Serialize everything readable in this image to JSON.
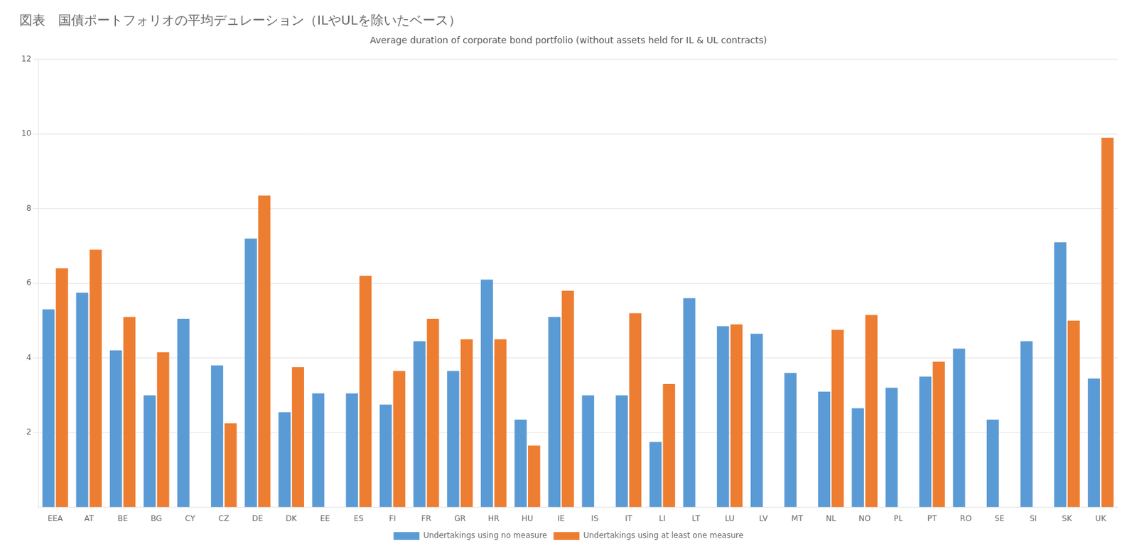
{
  "chart_data": {
    "type": "bar",
    "title": "図表　国債ポートフォリオの平均デュレーション（ILやULを除いたベース）",
    "subtitle": "Average duration of corporate bond portfolio (without assets held for IL & UL contracts)",
    "categories": [
      "EEA",
      "AT",
      "BE",
      "BG",
      "CY",
      "CZ",
      "DE",
      "DK",
      "EE",
      "ES",
      "FI",
      "FR",
      "GR",
      "HR",
      "HU",
      "IE",
      "IS",
      "IT",
      "LI",
      "LT",
      "LU",
      "LV",
      "MT",
      "NL",
      "NO",
      "PL",
      "PT",
      "RO",
      "SE",
      "SI",
      "SK",
      "UK"
    ],
    "series": [
      {
        "name": "Undertakings using no measure",
        "color": "#5B9BD5",
        "values": [
          5.3,
          5.75,
          4.2,
          3.0,
          5.05,
          3.8,
          7.2,
          2.55,
          3.05,
          3.05,
          2.75,
          4.45,
          3.65,
          6.1,
          2.35,
          5.1,
          3.0,
          3.0,
          1.75,
          5.6,
          4.85,
          4.65,
          3.6,
          3.1,
          2.65,
          3.2,
          3.5,
          4.25,
          2.35,
          4.45,
          7.1,
          3.45
        ]
      },
      {
        "name": "Undertakings using at least one measure",
        "color": "#ED7D31",
        "values": [
          6.4,
          6.9,
          5.1,
          4.15,
          null,
          2.25,
          8.35,
          3.75,
          null,
          6.2,
          3.65,
          5.05,
          4.5,
          4.5,
          1.65,
          5.8,
          null,
          5.2,
          3.3,
          null,
          4.9,
          null,
          null,
          4.75,
          5.15,
          null,
          3.9,
          null,
          null,
          null,
          5.0,
          9.9
        ]
      }
    ],
    "ylim": [
      0,
      12
    ],
    "yticks": [
      2,
      4,
      6,
      8,
      10,
      12
    ],
    "grid": true,
    "legend": "bottom"
  }
}
